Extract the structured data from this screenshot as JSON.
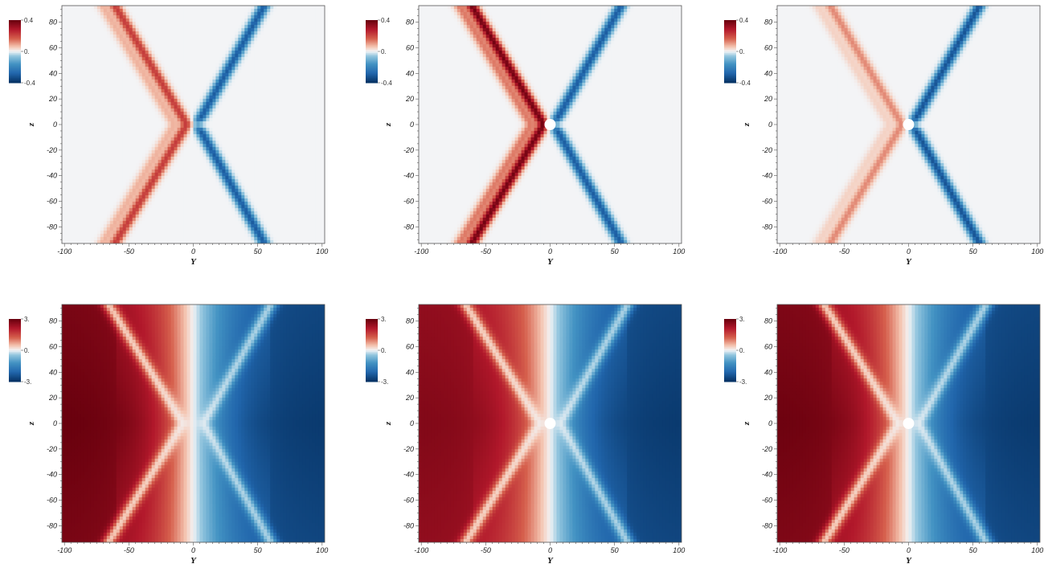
{
  "chart_data": [
    {
      "id": "top-left",
      "type": "heatmap",
      "row": 0,
      "col": 0,
      "xlabel": "Y",
      "ylabel": "z",
      "xlim": [
        -102,
        102
      ],
      "ylim": [
        -93,
        93
      ],
      "xticks": [
        -100,
        -50,
        0,
        50,
        100
      ],
      "yticks": [
        -80,
        -60,
        -40,
        -20,
        0,
        20,
        40,
        60,
        80
      ],
      "colorbar": {
        "labels": [
          "0.4",
          "0.",
          "-0.4"
        ],
        "range": [
          -0.4,
          0.4
        ],
        "colormap": "diverging red-white-blue"
      },
      "field": "wake",
      "obstacle": "point",
      "red_strength": 0.55,
      "blue_strength": 0.75
    },
    {
      "id": "top-center",
      "type": "heatmap",
      "row": 0,
      "col": 1,
      "xlabel": "Y",
      "ylabel": "z",
      "xlim": [
        -102,
        102
      ],
      "ylim": [
        -93,
        93
      ],
      "xticks": [
        -100,
        -50,
        0,
        50,
        100
      ],
      "yticks": [
        -80,
        -60,
        -40,
        -20,
        0,
        20,
        40,
        60,
        80
      ],
      "colorbar": {
        "labels": [
          "0.4",
          "0.",
          "-0.4"
        ],
        "range": [
          -0.4,
          0.4
        ],
        "colormap": "diverging red-white-blue"
      },
      "field": "wake",
      "obstacle": "cylinder",
      "red_strength": 0.95,
      "blue_strength": 0.75
    },
    {
      "id": "top-right",
      "type": "heatmap",
      "row": 0,
      "col": 2,
      "xlabel": "Y",
      "ylabel": "z",
      "xlim": [
        -102,
        102
      ],
      "ylim": [
        -93,
        93
      ],
      "xticks": [
        -100,
        -50,
        0,
        50,
        100
      ],
      "yticks": [
        -80,
        -60,
        -40,
        -20,
        0,
        20,
        40,
        60,
        80
      ],
      "colorbar": {
        "labels": [
          "0.4",
          "0.",
          "-0.4"
        ],
        "range": [
          -0.4,
          0.4
        ],
        "colormap": "diverging red-white-blue"
      },
      "field": "wake",
      "obstacle": "cylinder",
      "red_strength": 0.3,
      "blue_strength": 0.8
    },
    {
      "id": "bottom-left",
      "type": "heatmap",
      "row": 1,
      "col": 0,
      "xlabel": "Y",
      "ylabel": "z",
      "xlim": [
        -102,
        102
      ],
      "ylim": [
        -93,
        93
      ],
      "xticks": [
        -100,
        -50,
        0,
        50,
        100
      ],
      "yticks": [
        -80,
        -60,
        -40,
        -20,
        0,
        20,
        40,
        60,
        80
      ],
      "colorbar": {
        "labels": [
          "3.",
          "0.",
          "-3."
        ],
        "range": [
          -3,
          3
        ],
        "colormap": "diverging red-white-blue"
      },
      "field": "potential",
      "obstacle": "point",
      "red_strength": 1.0,
      "blue_strength": 0.95
    },
    {
      "id": "bottom-center",
      "type": "heatmap",
      "row": 1,
      "col": 1,
      "xlabel": "Y",
      "ylabel": "z",
      "xlim": [
        -102,
        102
      ],
      "ylim": [
        -93,
        93
      ],
      "xticks": [
        -100,
        -50,
        0,
        50,
        100
      ],
      "yticks": [
        -80,
        -60,
        -40,
        -20,
        0,
        20,
        40,
        60,
        80
      ],
      "colorbar": {
        "labels": [
          "3.",
          "0.",
          "-3."
        ],
        "range": [
          -3,
          3
        ],
        "colormap": "diverging red-white-blue"
      },
      "field": "potential",
      "obstacle": "cylinder",
      "red_strength": 0.9,
      "blue_strength": 0.95
    },
    {
      "id": "bottom-right",
      "type": "heatmap",
      "row": 1,
      "col": 2,
      "xlabel": "Y",
      "ylabel": "z",
      "xlim": [
        -102,
        102
      ],
      "ylim": [
        -93,
        93
      ],
      "xticks": [
        -100,
        -50,
        0,
        50,
        100
      ],
      "yticks": [
        -80,
        -60,
        -40,
        -20,
        0,
        20,
        40,
        60,
        80
      ],
      "colorbar": {
        "labels": [
          "3.",
          "0.",
          "-3."
        ],
        "range": [
          -3,
          3
        ],
        "colormap": "diverging red-white-blue"
      },
      "field": "potential",
      "obstacle": "cylinder",
      "red_strength": 0.98,
      "blue_strength": 0.95
    }
  ]
}
